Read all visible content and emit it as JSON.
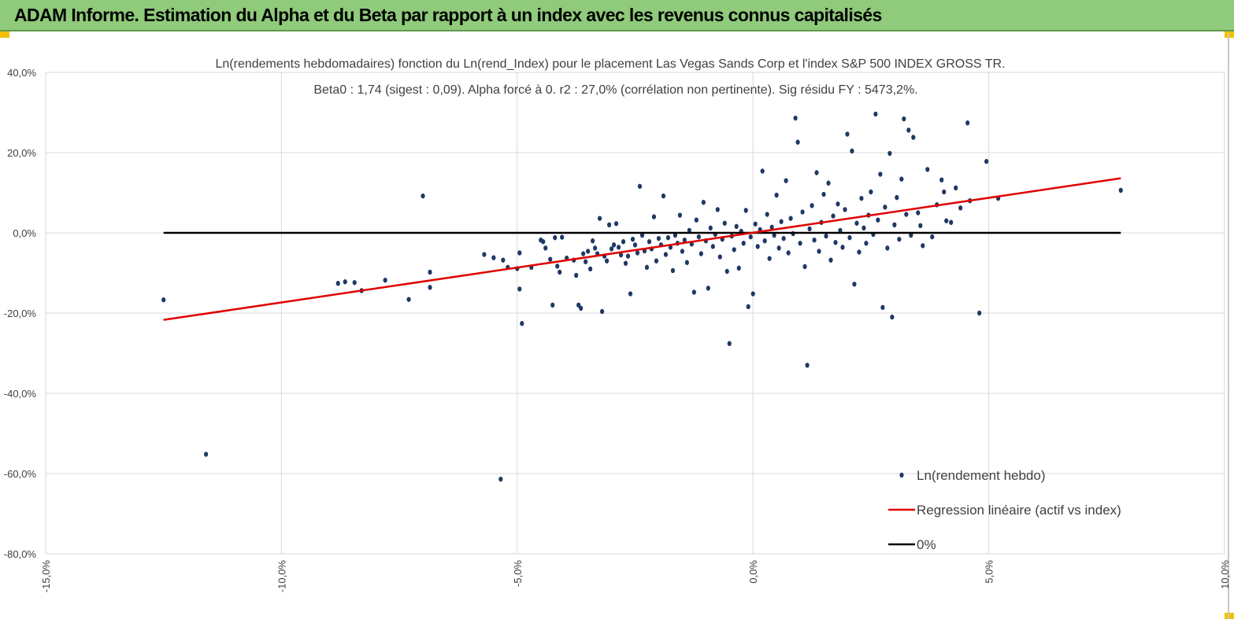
{
  "header": {
    "title": "ADAM Informe. Estimation du Alpha et du Beta par rapport à un index avec les revenus connus capitalisés"
  },
  "colors": {
    "banner": "#8fcb7a",
    "points": "#1f3864",
    "regression": "#e00000",
    "zero_line": "#000000",
    "grid": "#d9d9d9",
    "accent": "#f2c200"
  },
  "chart_data": {
    "type": "scatter",
    "title": "Ln(rendements hebdomadaires) fonction du Ln(rend_Index) pour le placement Las Vegas Sands Corp et l'index S&P 500 INDEX GROSS TR.",
    "subtitle": "Beta0 : 1,74 (sigest : 0,09). Alpha forcé à 0. r2 : 27,0% (corrélation non pertinente). Sig résidu FY : 5473,2%.",
    "xlim": [
      -15,
      10
    ],
    "ylim": [
      -80,
      40
    ],
    "x_ticks": [
      "-15,0%",
      "-10,0%",
      "-5,0%",
      "0,0%",
      "5,0%",
      "10,0%"
    ],
    "x_tick_values": [
      -15,
      -10,
      -5,
      0,
      5,
      10
    ],
    "y_ticks": [
      "40,0%",
      "20,0%",
      "0,0%",
      "-20,0%",
      "-40,0%",
      "-60,0%",
      "-80,0%"
    ],
    "y_tick_values": [
      40,
      20,
      0,
      -20,
      -40,
      -60,
      -80
    ],
    "grid": "vertical and horizontal",
    "legend_position": "bottom-right",
    "legend": [
      "Ln(rendement hebdo)",
      "Regression linéaire (actif vs index)",
      "0%"
    ],
    "regression": {
      "x": [
        -12.5,
        7.8
      ],
      "y": [
        -21.7,
        13.6
      ]
    },
    "zero_line": {
      "x": [
        -12.5,
        7.8
      ],
      "y": [
        0,
        0
      ]
    },
    "points": [
      [
        -12.5,
        -16.7
      ],
      [
        -11.6,
        -55.2
      ],
      [
        -8.8,
        -12.6
      ],
      [
        -8.65,
        -12.2
      ],
      [
        -8.45,
        -12.4
      ],
      [
        -8.3,
        -14.4
      ],
      [
        -7.8,
        -11.8
      ],
      [
        -7.3,
        -16.6
      ],
      [
        -7.0,
        9.2
      ],
      [
        -6.85,
        -9.8
      ],
      [
        -6.85,
        -13.6
      ],
      [
        -5.7,
        -5.4
      ],
      [
        -5.5,
        -6.2
      ],
      [
        -5.35,
        -61.4
      ],
      [
        -5.3,
        -6.8
      ],
      [
        -5.2,
        -8.6
      ],
      [
        -5.0,
        -8.9
      ],
      [
        -4.95,
        -5.0
      ],
      [
        -4.95,
        -14.0
      ],
      [
        -4.9,
        -22.6
      ],
      [
        -4.7,
        -8.6
      ],
      [
        -4.5,
        -1.8
      ],
      [
        -4.45,
        -2.2
      ],
      [
        -4.4,
        -3.8
      ],
      [
        -4.3,
        -6.6
      ],
      [
        -4.25,
        -18.0
      ],
      [
        -4.2,
        -1.2
      ],
      [
        -4.15,
        -8.3
      ],
      [
        -4.1,
        -9.8
      ],
      [
        -4.05,
        -1.1
      ],
      [
        -3.95,
        -6.3
      ],
      [
        -3.8,
        -6.8
      ],
      [
        -3.75,
        -10.6
      ],
      [
        -3.7,
        -18.0
      ],
      [
        -3.65,
        -18.8
      ],
      [
        -3.6,
        -5.2
      ],
      [
        -3.55,
        -7.2
      ],
      [
        -3.5,
        -4.6
      ],
      [
        -3.45,
        -9.0
      ],
      [
        -3.4,
        -2.0
      ],
      [
        -3.35,
        -3.8
      ],
      [
        -3.3,
        -5.2
      ],
      [
        -3.25,
        3.6
      ],
      [
        -3.2,
        -19.6
      ],
      [
        -3.15,
        -5.8
      ],
      [
        -3.1,
        -7.0
      ],
      [
        -3.05,
        2.0
      ],
      [
        -3.0,
        -4.0
      ],
      [
        -2.95,
        -3.0
      ],
      [
        -2.9,
        2.3
      ],
      [
        -2.85,
        -3.6
      ],
      [
        -2.8,
        -5.5
      ],
      [
        -2.75,
        -2.2
      ],
      [
        -2.7,
        -7.6
      ],
      [
        -2.65,
        -5.8
      ],
      [
        -2.6,
        -15.2
      ],
      [
        -2.55,
        -1.6
      ],
      [
        -2.5,
        -3.0
      ],
      [
        -2.45,
        -5.0
      ],
      [
        -2.4,
        11.6
      ],
      [
        -2.35,
        -0.6
      ],
      [
        -2.3,
        -4.5
      ],
      [
        -2.25,
        -8.6
      ],
      [
        -2.2,
        -2.2
      ],
      [
        -2.15,
        -4.0
      ],
      [
        -2.1,
        4.0
      ],
      [
        -2.05,
        -7.0
      ],
      [
        -2.0,
        -1.4
      ],
      [
        -1.95,
        -3.0
      ],
      [
        -1.9,
        9.2
      ],
      [
        -1.85,
        -5.4
      ],
      [
        -1.8,
        -1.2
      ],
      [
        -1.75,
        -3.6
      ],
      [
        -1.7,
        -9.4
      ],
      [
        -1.65,
        -0.6
      ],
      [
        -1.6,
        -2.6
      ],
      [
        -1.55,
        4.4
      ],
      [
        -1.5,
        -4.6
      ],
      [
        -1.45,
        -1.8
      ],
      [
        -1.4,
        -7.4
      ],
      [
        -1.35,
        0.6
      ],
      [
        -1.3,
        -2.8
      ],
      [
        -1.25,
        -14.8
      ],
      [
        -1.2,
        3.2
      ],
      [
        -1.15,
        -1.0
      ],
      [
        -1.1,
        -5.2
      ],
      [
        -1.05,
        7.6
      ],
      [
        -1.0,
        -2.0
      ],
      [
        -0.95,
        -13.8
      ],
      [
        -0.9,
        1.2
      ],
      [
        -0.85,
        -3.4
      ],
      [
        -0.8,
        -0.4
      ],
      [
        -0.75,
        5.8
      ],
      [
        -0.7,
        -6.0
      ],
      [
        -0.65,
        -1.6
      ],
      [
        -0.6,
        2.4
      ],
      [
        -0.55,
        -9.6
      ],
      [
        -0.5,
        -27.6
      ],
      [
        -0.45,
        -0.8
      ],
      [
        -0.4,
        -4.2
      ],
      [
        -0.35,
        1.6
      ],
      [
        -0.3,
        -8.8
      ],
      [
        -0.25,
        0.4
      ],
      [
        -0.2,
        -2.6
      ],
      [
        -0.15,
        5.6
      ],
      [
        -0.1,
        -18.4
      ],
      [
        -0.05,
        -1.0
      ],
      [
        0.0,
        -15.2
      ],
      [
        0.05,
        2.2
      ],
      [
        0.1,
        -3.4
      ],
      [
        0.15,
        0.8
      ],
      [
        0.2,
        15.4
      ],
      [
        0.25,
        -2.0
      ],
      [
        0.3,
        4.6
      ],
      [
        0.35,
        -6.4
      ],
      [
        0.4,
        1.4
      ],
      [
        0.45,
        -0.6
      ],
      [
        0.5,
        9.4
      ],
      [
        0.55,
        -3.8
      ],
      [
        0.6,
        2.8
      ],
      [
        0.65,
        -1.4
      ],
      [
        0.7,
        13.0
      ],
      [
        0.75,
        -5.0
      ],
      [
        0.8,
        3.6
      ],
      [
        0.85,
        -0.2
      ],
      [
        0.9,
        28.6
      ],
      [
        0.95,
        22.6
      ],
      [
        1.0,
        -2.6
      ],
      [
        1.05,
        5.2
      ],
      [
        1.1,
        -8.4
      ],
      [
        1.15,
        -33.0
      ],
      [
        1.2,
        1.0
      ],
      [
        1.25,
        6.8
      ],
      [
        1.3,
        -1.8
      ],
      [
        1.35,
        15.0
      ],
      [
        1.4,
        -4.6
      ],
      [
        1.45,
        2.6
      ],
      [
        1.5,
        9.6
      ],
      [
        1.55,
        -0.8
      ],
      [
        1.6,
        12.4
      ],
      [
        1.65,
        -6.8
      ],
      [
        1.7,
        4.2
      ],
      [
        1.75,
        -2.4
      ],
      [
        1.8,
        7.2
      ],
      [
        1.85,
        0.6
      ],
      [
        1.9,
        -3.6
      ],
      [
        1.95,
        5.8
      ],
      [
        2.0,
        24.6
      ],
      [
        2.05,
        -1.2
      ],
      [
        2.1,
        20.4
      ],
      [
        2.15,
        -12.8
      ],
      [
        2.2,
        2.4
      ],
      [
        2.25,
        -4.8
      ],
      [
        2.3,
        8.6
      ],
      [
        2.35,
        1.2
      ],
      [
        2.4,
        -2.6
      ],
      [
        2.45,
        4.4
      ],
      [
        2.5,
        10.2
      ],
      [
        2.55,
        -0.4
      ],
      [
        2.6,
        29.6
      ],
      [
        2.65,
        3.2
      ],
      [
        2.7,
        14.6
      ],
      [
        2.75,
        -18.6
      ],
      [
        2.8,
        6.4
      ],
      [
        2.85,
        -3.8
      ],
      [
        2.9,
        19.8
      ],
      [
        2.95,
        -21.0
      ],
      [
        3.0,
        2.0
      ],
      [
        3.05,
        8.8
      ],
      [
        3.1,
        -1.6
      ],
      [
        3.15,
        13.4
      ],
      [
        3.2,
        28.4
      ],
      [
        3.25,
        4.6
      ],
      [
        3.3,
        25.6
      ],
      [
        3.35,
        -0.6
      ],
      [
        3.4,
        23.8
      ],
      [
        3.5,
        5.0
      ],
      [
        3.55,
        1.8
      ],
      [
        3.6,
        -3.2
      ],
      [
        3.7,
        15.8
      ],
      [
        3.8,
        -1.0
      ],
      [
        3.9,
        7.0
      ],
      [
        4.0,
        13.2
      ],
      [
        4.05,
        10.2
      ],
      [
        4.1,
        3.0
      ],
      [
        4.2,
        2.6
      ],
      [
        4.3,
        11.2
      ],
      [
        4.4,
        6.2
      ],
      [
        4.55,
        27.4
      ],
      [
        4.6,
        8.0
      ],
      [
        4.8,
        -20.0
      ],
      [
        4.95,
        17.8
      ],
      [
        5.2,
        8.6
      ],
      [
        7.8,
        10.6
      ]
    ]
  }
}
